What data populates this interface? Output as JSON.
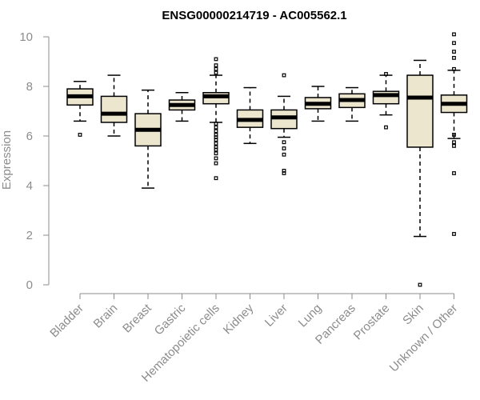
{
  "chart_data": {
    "type": "boxplot",
    "title": "ENSG00000214719 - AC005562.1",
    "ylabel": "Expression",
    "xlabel": "",
    "ylim": [
      0,
      10
    ],
    "yticks": [
      0,
      2,
      4,
      6,
      8,
      10
    ],
    "box_color": "#ede6cf",
    "series": [
      {
        "name": "Bladder",
        "min": 6.6,
        "q1": 7.25,
        "median": 7.6,
        "q3": 7.9,
        "max": 8.2,
        "outliers": [
          6.05
        ]
      },
      {
        "name": "Brain",
        "min": 6.0,
        "q1": 6.55,
        "median": 6.9,
        "q3": 7.6,
        "max": 8.45,
        "outliers": []
      },
      {
        "name": "Breast",
        "min": 3.9,
        "q1": 5.6,
        "median": 6.25,
        "q3": 6.9,
        "max": 7.85,
        "outliers": []
      },
      {
        "name": "Gastric",
        "min": 6.6,
        "q1": 7.05,
        "median": 7.25,
        "q3": 7.45,
        "max": 7.75,
        "outliers": []
      },
      {
        "name": "Hematopoietic cells",
        "min": 6.55,
        "q1": 7.3,
        "median": 7.6,
        "q3": 7.75,
        "max": 8.45,
        "outliers": [
          9.1,
          8.85,
          8.7,
          8.55,
          6.5,
          6.35,
          6.2,
          6.05,
          5.95,
          5.85,
          5.7,
          5.55,
          5.45,
          5.3,
          5.1,
          4.9,
          4.3
        ]
      },
      {
        "name": "Kidney",
        "min": 5.7,
        "q1": 6.35,
        "median": 6.65,
        "q3": 7.05,
        "max": 7.95,
        "outliers": []
      },
      {
        "name": "Liver",
        "min": 5.95,
        "q1": 6.3,
        "median": 6.75,
        "q3": 7.05,
        "max": 7.6,
        "outliers": [
          8.45,
          5.75,
          5.5,
          5.25,
          4.6,
          4.5
        ]
      },
      {
        "name": "Lung",
        "min": 6.6,
        "q1": 7.1,
        "median": 7.3,
        "q3": 7.55,
        "max": 8.0,
        "outliers": []
      },
      {
        "name": "Pancreas",
        "min": 6.6,
        "q1": 7.15,
        "median": 7.45,
        "q3": 7.7,
        "max": 7.95,
        "outliers": []
      },
      {
        "name": "Prostate",
        "min": 6.85,
        "q1": 7.3,
        "median": 7.65,
        "q3": 7.8,
        "max": 8.45,
        "outliers": [
          8.5,
          6.35
        ]
      },
      {
        "name": "Skin",
        "min": 1.95,
        "q1": 5.55,
        "median": 7.55,
        "q3": 8.45,
        "max": 9.05,
        "outliers": [
          0.0
        ]
      },
      {
        "name": "Unknown / Other",
        "min": 5.9,
        "q1": 6.95,
        "median": 7.3,
        "q3": 7.65,
        "max": 8.65,
        "outliers": [
          10.1,
          9.75,
          9.4,
          9.15,
          8.7,
          6.05,
          5.75,
          5.6,
          4.5,
          2.05
        ]
      }
    ]
  }
}
